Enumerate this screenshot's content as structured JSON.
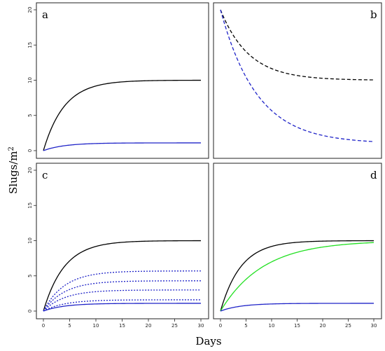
{
  "xlabel": "Days",
  "ylabel": "Slugs/m",
  "ylabel_superscript": "2",
  "highlight_color": "#e3171b",
  "chart_data": [
    {
      "type": "line",
      "panel_label": "a",
      "xlim": [
        0,
        30
      ],
      "ylim": [
        0,
        20
      ],
      "xticks": [],
      "yticks": [
        "0",
        "5",
        "10",
        "15",
        "20"
      ],
      "highlight_ytick": "10",
      "series": [
        {
          "model": "logistic",
          "K": 10,
          "r": 0.25,
          "color": "#000000",
          "dash": "solid"
        },
        {
          "model": "logistic",
          "K": 1.1,
          "r": 0.25,
          "color": "#1f23c8",
          "dash": "solid"
        }
      ]
    },
    {
      "type": "line",
      "panel_label": "b",
      "xlim": [
        0,
        30
      ],
      "ylim": [
        0,
        20
      ],
      "xticks": [],
      "yticks": [],
      "series": [
        {
          "model": "decay",
          "start": 20,
          "end": 10,
          "r": 0.18,
          "color": "#000000",
          "dash": "dashed"
        },
        {
          "model": "decay",
          "start": 20,
          "end": 1,
          "r": 0.14,
          "color": "#1f23c8",
          "dash": "dashed"
        }
      ]
    },
    {
      "type": "line",
      "panel_label": "c",
      "xlim": [
        0,
        30
      ],
      "ylim": [
        0,
        20
      ],
      "xticks": [
        "0",
        "5",
        "10",
        "15",
        "20",
        "25",
        "30"
      ],
      "yticks": [
        "0",
        "5",
        "10",
        "15",
        "20"
      ],
      "highlight_ytick": "10",
      "series": [
        {
          "model": "logistic",
          "K": 10,
          "r": 0.25,
          "color": "#000000",
          "dash": "solid"
        },
        {
          "model": "logistic",
          "K": 5.7,
          "r": 0.25,
          "color": "#1f23c8",
          "dash": "dotted"
        },
        {
          "model": "logistic",
          "K": 4.3,
          "r": 0.25,
          "color": "#1f23c8",
          "dash": "dotted"
        },
        {
          "model": "logistic",
          "K": 3.0,
          "r": 0.25,
          "color": "#1f23c8",
          "dash": "dotted"
        },
        {
          "model": "logistic",
          "K": 1.6,
          "r": 0.25,
          "color": "#1f23c8",
          "dash": "dotted"
        },
        {
          "model": "logistic",
          "K": 1.1,
          "r": 0.25,
          "color": "#1f23c8",
          "dash": "solid"
        }
      ]
    },
    {
      "type": "line",
      "panel_label": "d",
      "xlim": [
        0,
        30
      ],
      "ylim": [
        0,
        20
      ],
      "xticks": [
        "0",
        "5",
        "10",
        "15",
        "20",
        "25",
        "30"
      ],
      "yticks": [],
      "series": [
        {
          "model": "logistic",
          "K": 10,
          "r": 0.25,
          "color": "#000000",
          "dash": "solid"
        },
        {
          "model": "logistic",
          "K": 10,
          "r": 0.12,
          "color": "#22e022",
          "dash": "solid"
        },
        {
          "model": "logistic",
          "K": 1.1,
          "r": 0.25,
          "color": "#1f23c8",
          "dash": "solid"
        }
      ]
    }
  ]
}
